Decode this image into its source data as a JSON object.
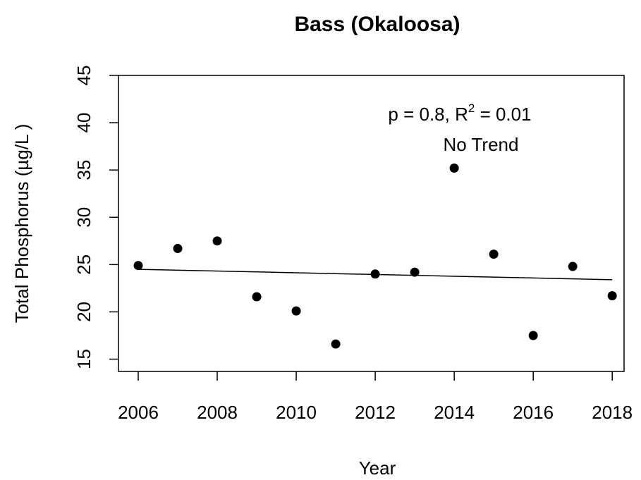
{
  "chart_data": {
    "type": "scatter",
    "title": "Bass (Okaloosa)",
    "xlabel": "Year",
    "ylabel": "Total Phosphorus (µg/L )",
    "x": [
      2006,
      2007,
      2008,
      2009,
      2010,
      2011,
      2012,
      2013,
      2014,
      2015,
      2016,
      2017,
      2018
    ],
    "values": [
      24.9,
      26.7,
      27.5,
      21.6,
      20.1,
      16.6,
      24.0,
      24.2,
      35.2,
      26.1,
      17.5,
      24.8,
      21.7
    ],
    "color": "#000000",
    "trend": {
      "x": [
        2006,
        2018
      ],
      "values": [
        24.5,
        23.4
      ]
    },
    "annotation": [
      "p = 0.8, R",
      "2",
      " = 0.01"
    ],
    "annotation2": "No Trend",
    "xlim": [
      2005.5,
      2018.3
    ],
    "xticks": [
      2006,
      2008,
      2010,
      2012,
      2014,
      2016,
      2018
    ],
    "ylim": [
      13.7,
      45
    ],
    "yticks": [
      15,
      20,
      25,
      30,
      35,
      40,
      45
    ]
  }
}
